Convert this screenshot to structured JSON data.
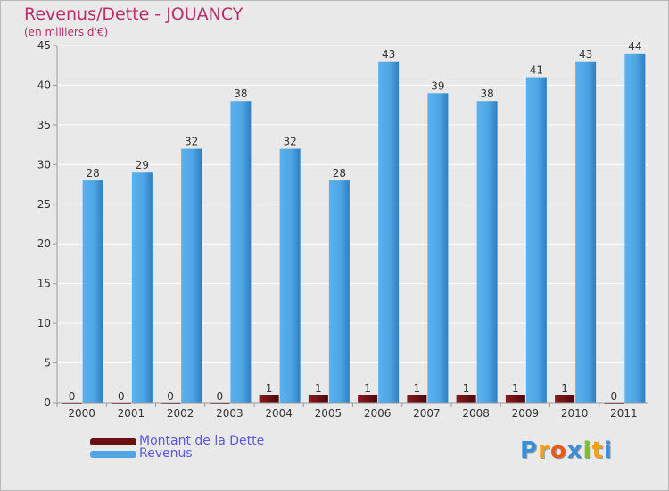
{
  "header": {
    "title": "Revenus/Dette - JOUANCY",
    "subtitle": "(en milliers d'€)"
  },
  "chart_data": {
    "type": "bar",
    "title": "Revenus/Dette - JOUANCY",
    "subtitle": "(en milliers d'€)",
    "xlabel": "",
    "ylabel": "",
    "ylim": [
      0,
      45
    ],
    "yticks": [
      0,
      5,
      10,
      15,
      20,
      25,
      30,
      35,
      40,
      45
    ],
    "grid": true,
    "legend_position": "bottom-left",
    "categories": [
      "2000",
      "2001",
      "2002",
      "2003",
      "2004",
      "2005",
      "2006",
      "2007",
      "2008",
      "2009",
      "2010",
      "2011"
    ],
    "series": [
      {
        "name": "Montant de la Dette",
        "color": "#6b0f14",
        "values": [
          0,
          0,
          0,
          0,
          1,
          1,
          1,
          1,
          1,
          1,
          1,
          0
        ]
      },
      {
        "name": "Revenus",
        "color": "#4ea6e6",
        "values": [
          28,
          29,
          32,
          38,
          32,
          28,
          43,
          39,
          38,
          41,
          43,
          44
        ]
      }
    ]
  },
  "legend": {
    "items": [
      {
        "label": "Montant de la Dette",
        "color": "#6b0f14"
      },
      {
        "label": "Revenus",
        "color": "#4ea6e6"
      }
    ]
  },
  "logo": {
    "letters": [
      "P",
      "r",
      "o",
      "x",
      "i",
      "t",
      "i"
    ],
    "colors": [
      "#3a8fd8",
      "#f0a020",
      "#e85a1a",
      "#3a8fd8",
      "#7cc12c",
      "#f0a020",
      "#3a8fd8"
    ]
  }
}
